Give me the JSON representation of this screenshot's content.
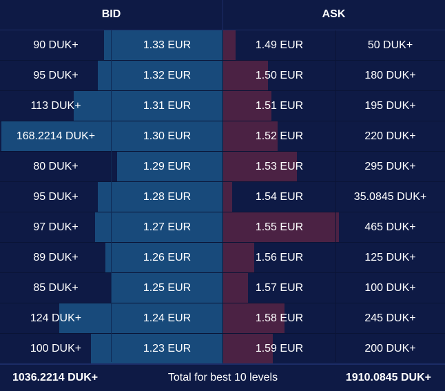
{
  "header": {
    "bid_label": "BID",
    "ask_label": "ASK"
  },
  "colors": {
    "background": "#0e1a45",
    "bid_bar": "#184a7b",
    "ask_bar": "#4b2244"
  },
  "bids": [
    {
      "qty": "90 DUK+",
      "price": "1.33 EUR",
      "depth": 90
    },
    {
      "qty": "95 DUK+",
      "price": "1.32 EUR",
      "depth": 95
    },
    {
      "qty": "113 DUK+",
      "price": "1.31 EUR",
      "depth": 113
    },
    {
      "qty": "168.2214 DUK+",
      "price": "1.30 EUR",
      "depth": 168.2214
    },
    {
      "qty": "80 DUK+",
      "price": "1.29 EUR",
      "depth": 80
    },
    {
      "qty": "95 DUK+",
      "price": "1.28 EUR",
      "depth": 95
    },
    {
      "qty": "97 DUK+",
      "price": "1.27 EUR",
      "depth": 97
    },
    {
      "qty": "89 DUK+",
      "price": "1.26 EUR",
      "depth": 89
    },
    {
      "qty": "85 DUK+",
      "price": "1.25 EUR",
      "depth": 85
    },
    {
      "qty": "124 DUK+",
      "price": "1.24 EUR",
      "depth": 124
    },
    {
      "qty": "100 DUK+",
      "price": "1.23 EUR",
      "depth": 100
    }
  ],
  "asks": [
    {
      "price": "1.49 EUR",
      "qty": "50 DUK+",
      "depth": 50
    },
    {
      "price": "1.50 EUR",
      "qty": "180 DUK+",
      "depth": 180
    },
    {
      "price": "1.51 EUR",
      "qty": "195 DUK+",
      "depth": 195
    },
    {
      "price": "1.52 EUR",
      "qty": "220 DUK+",
      "depth": 220
    },
    {
      "price": "1.53 EUR",
      "qty": "295 DUK+",
      "depth": 295
    },
    {
      "price": "1.54 EUR",
      "qty": "35.0845 DUK+",
      "depth": 35.0845
    },
    {
      "price": "1.55 EUR",
      "qty": "465 DUK+",
      "depth": 465
    },
    {
      "price": "1.56 EUR",
      "qty": "125 DUK+",
      "depth": 125
    },
    {
      "price": "1.57 EUR",
      "qty": "100 DUK+",
      "depth": 100
    },
    {
      "price": "1.58 EUR",
      "qty": "245 DUK+",
      "depth": 245
    },
    {
      "price": "1.59 EUR",
      "qty": "200 DUK+",
      "depth": 200
    }
  ],
  "footer": {
    "bid_total": "1036.2214 DUK+",
    "label": "Total for best 10 levels",
    "ask_total": "1910.0845 DUK+"
  }
}
